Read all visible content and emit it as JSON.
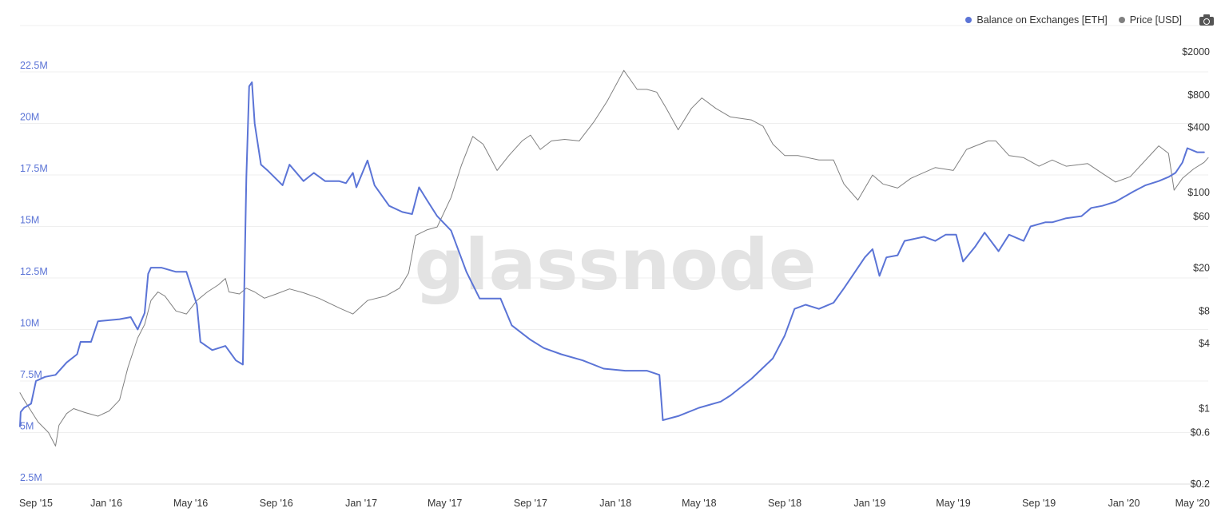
{
  "watermark": "glassnode",
  "legend": [
    {
      "label": "Balance on Exchanges [ETH]",
      "color": "#5b74d6"
    },
    {
      "label": "Price [USD]",
      "color": "#808080"
    }
  ],
  "chart_data": {
    "type": "line",
    "left_axis": {
      "ticks": [
        2.5,
        5,
        7.5,
        10,
        12.5,
        15,
        17.5,
        20,
        22.5
      ],
      "labels": [
        "2.5M",
        "5M",
        "7.5M",
        "10M",
        "12.5M",
        "15M",
        "17.5M",
        "20M",
        "22.5M"
      ],
      "range": [
        2.5,
        22.5
      ]
    },
    "right_axis": {
      "scale": "log",
      "ticks": [
        0.2,
        0.6,
        1,
        4,
        8,
        20,
        60,
        100,
        400,
        800,
        2000
      ],
      "labels": [
        "$0.2",
        "$0.6",
        "$1",
        "$4",
        "$8",
        "$20",
        "$60",
        "$100",
        "$400",
        "$800",
        "$2000"
      ],
      "range": [
        0.2,
        2000
      ]
    },
    "x_axis": {
      "labels": [
        "Sep '15",
        "Jan '16",
        "May '16",
        "Sep '16",
        "Jan '17",
        "May '17",
        "Sep '17",
        "Jan '18",
        "May '18",
        "Sep '18",
        "Jan '19",
        "May '19",
        "Sep '19",
        "Jan '20",
        "May '20"
      ],
      "range": [
        "2015-08-30",
        "2020-05-01"
      ]
    },
    "grid": true,
    "series": [
      {
        "name": "Balance on Exchanges [ETH]",
        "axis": "left",
        "color": "#5b74d6",
        "points": [
          [
            "2015-08-30",
            5.3
          ],
          [
            "2015-08-31",
            6.0
          ],
          [
            "2015-09-05",
            6.2
          ],
          [
            "2015-09-15",
            6.4
          ],
          [
            "2015-09-22",
            7.5
          ],
          [
            "2015-10-05",
            7.7
          ],
          [
            "2015-10-20",
            7.8
          ],
          [
            "2015-11-05",
            8.4
          ],
          [
            "2015-11-20",
            8.8
          ],
          [
            "2015-11-25",
            9.4
          ],
          [
            "2015-12-10",
            9.4
          ],
          [
            "2015-12-20",
            10.4
          ],
          [
            "2016-01-20",
            10.5
          ],
          [
            "2016-02-05",
            10.6
          ],
          [
            "2016-02-15",
            10.0
          ],
          [
            "2016-02-25",
            10.8
          ],
          [
            "2016-03-01",
            12.7
          ],
          [
            "2016-03-05",
            13.0
          ],
          [
            "2016-03-20",
            13.0
          ],
          [
            "2016-04-10",
            12.8
          ],
          [
            "2016-04-25",
            12.8
          ],
          [
            "2016-05-10",
            11.2
          ],
          [
            "2016-05-15",
            9.4
          ],
          [
            "2016-06-01",
            9.0
          ],
          [
            "2016-06-20",
            9.2
          ],
          [
            "2016-07-05",
            8.5
          ],
          [
            "2016-07-15",
            8.3
          ],
          [
            "2016-07-20",
            17.4
          ],
          [
            "2016-07-24",
            21.8
          ],
          [
            "2016-07-28",
            22.0
          ],
          [
            "2016-08-01",
            20.0
          ],
          [
            "2016-08-10",
            18.0
          ],
          [
            "2016-08-20",
            17.7
          ],
          [
            "2016-09-10",
            17.0
          ],
          [
            "2016-09-20",
            18.0
          ],
          [
            "2016-10-10",
            17.2
          ],
          [
            "2016-10-25",
            17.6
          ],
          [
            "2016-11-10",
            17.2
          ],
          [
            "2016-11-30",
            17.2
          ],
          [
            "2016-12-10",
            17.1
          ],
          [
            "2016-12-20",
            17.6
          ],
          [
            "2016-12-25",
            16.9
          ],
          [
            "2017-01-10",
            18.2
          ],
          [
            "2017-01-20",
            17.0
          ],
          [
            "2017-02-10",
            16.0
          ],
          [
            "2017-03-01",
            15.7
          ],
          [
            "2017-03-15",
            15.6
          ],
          [
            "2017-03-25",
            16.9
          ],
          [
            "2017-04-05",
            16.3
          ],
          [
            "2017-04-20",
            15.5
          ],
          [
            "2017-05-10",
            14.8
          ],
          [
            "2017-06-01",
            12.8
          ],
          [
            "2017-06-20",
            11.5
          ],
          [
            "2017-07-10",
            11.5
          ],
          [
            "2017-07-20",
            11.5
          ],
          [
            "2017-08-05",
            10.2
          ],
          [
            "2017-09-01",
            9.5
          ],
          [
            "2017-09-20",
            9.1
          ],
          [
            "2017-10-15",
            8.8
          ],
          [
            "2017-11-15",
            8.5
          ],
          [
            "2017-12-15",
            8.1
          ],
          [
            "2018-01-15",
            8.0
          ],
          [
            "2018-02-15",
            8.0
          ],
          [
            "2018-03-05",
            7.8
          ],
          [
            "2018-03-10",
            5.6
          ],
          [
            "2018-04-01",
            5.8
          ],
          [
            "2018-05-01",
            6.2
          ],
          [
            "2018-06-01",
            6.5
          ],
          [
            "2018-06-15",
            6.8
          ],
          [
            "2018-07-15",
            7.6
          ],
          [
            "2018-08-15",
            8.6
          ],
          [
            "2018-09-01",
            9.7
          ],
          [
            "2018-09-15",
            11.0
          ],
          [
            "2018-10-01",
            11.2
          ],
          [
            "2018-10-20",
            11.0
          ],
          [
            "2018-11-10",
            11.3
          ],
          [
            "2018-11-25",
            12.0
          ],
          [
            "2018-12-15",
            13.0
          ],
          [
            "2018-12-25",
            13.5
          ],
          [
            "2019-01-05",
            13.9
          ],
          [
            "2019-01-15",
            12.6
          ],
          [
            "2019-01-25",
            13.5
          ],
          [
            "2019-02-10",
            13.6
          ],
          [
            "2019-02-20",
            14.3
          ],
          [
            "2019-03-20",
            14.5
          ],
          [
            "2019-04-05",
            14.3
          ],
          [
            "2019-04-20",
            14.6
          ],
          [
            "2019-05-05",
            14.6
          ],
          [
            "2019-05-15",
            13.3
          ],
          [
            "2019-06-01",
            14.0
          ],
          [
            "2019-06-15",
            14.7
          ],
          [
            "2019-07-05",
            13.8
          ],
          [
            "2019-07-20",
            14.6
          ],
          [
            "2019-08-10",
            14.3
          ],
          [
            "2019-08-20",
            15.0
          ],
          [
            "2019-09-10",
            15.2
          ],
          [
            "2019-09-20",
            15.2
          ],
          [
            "2019-10-10",
            15.4
          ],
          [
            "2019-11-01",
            15.5
          ],
          [
            "2019-11-15",
            15.9
          ],
          [
            "2019-12-01",
            16.0
          ],
          [
            "2019-12-20",
            16.2
          ],
          [
            "2020-01-15",
            16.7
          ],
          [
            "2020-02-01",
            17.0
          ],
          [
            "2020-02-20",
            17.2
          ],
          [
            "2020-03-05",
            17.4
          ],
          [
            "2020-03-15",
            17.6
          ],
          [
            "2020-03-25",
            18.1
          ],
          [
            "2020-04-01",
            18.8
          ],
          [
            "2020-04-15",
            18.6
          ],
          [
            "2020-04-25",
            18.6
          ]
        ]
      },
      {
        "name": "Price [USD]",
        "axis": "right",
        "color": "#808080",
        "points": [
          [
            "2015-08-30",
            1.4
          ],
          [
            "2015-09-05",
            1.2
          ],
          [
            "2015-09-15",
            0.95
          ],
          [
            "2015-09-25",
            0.75
          ],
          [
            "2015-10-10",
            0.6
          ],
          [
            "2015-10-20",
            0.45
          ],
          [
            "2015-10-25",
            0.7
          ],
          [
            "2015-11-05",
            0.9
          ],
          [
            "2015-11-15",
            1.0
          ],
          [
            "2015-12-01",
            0.92
          ],
          [
            "2015-12-20",
            0.85
          ],
          [
            "2016-01-05",
            0.95
          ],
          [
            "2016-01-20",
            1.2
          ],
          [
            "2016-02-01",
            2.4
          ],
          [
            "2016-02-15",
            4.5
          ],
          [
            "2016-02-25",
            6.0
          ],
          [
            "2016-03-05",
            10.0
          ],
          [
            "2016-03-15",
            12.0
          ],
          [
            "2016-03-25",
            11.0
          ],
          [
            "2016-04-10",
            8.0
          ],
          [
            "2016-04-25",
            7.5
          ],
          [
            "2016-05-10",
            10.0
          ],
          [
            "2016-05-25",
            12.0
          ],
          [
            "2016-06-10",
            14.0
          ],
          [
            "2016-06-20",
            16.0
          ],
          [
            "2016-06-25",
            12.0
          ],
          [
            "2016-07-10",
            11.5
          ],
          [
            "2016-07-20",
            13.0
          ],
          [
            "2016-08-01",
            12.0
          ],
          [
            "2016-08-15",
            10.5
          ],
          [
            "2016-09-01",
            11.5
          ],
          [
            "2016-09-20",
            12.8
          ],
          [
            "2016-10-10",
            11.8
          ],
          [
            "2016-11-01",
            10.5
          ],
          [
            "2016-12-01",
            8.5
          ],
          [
            "2016-12-20",
            7.5
          ],
          [
            "2017-01-10",
            10.0
          ],
          [
            "2017-02-05",
            11.0
          ],
          [
            "2017-02-25",
            13.0
          ],
          [
            "2017-03-10",
            18.0
          ],
          [
            "2017-03-20",
            40.0
          ],
          [
            "2017-04-05",
            45.0
          ],
          [
            "2017-04-20",
            48.0
          ],
          [
            "2017-05-10",
            90.0
          ],
          [
            "2017-05-25",
            180.0
          ],
          [
            "2017-06-10",
            330.0
          ],
          [
            "2017-06-25",
            280.0
          ],
          [
            "2017-07-15",
            160.0
          ],
          [
            "2017-08-01",
            220.0
          ],
          [
            "2017-08-20",
            300.0
          ],
          [
            "2017-09-01",
            340.0
          ],
          [
            "2017-09-15",
            250.0
          ],
          [
            "2017-10-01",
            300.0
          ],
          [
            "2017-10-20",
            310.0
          ],
          [
            "2017-11-10",
            300.0
          ],
          [
            "2017-12-01",
            450.0
          ],
          [
            "2017-12-20",
            700.0
          ],
          [
            "2018-01-13",
            1350.0
          ],
          [
            "2018-02-01",
            900.0
          ],
          [
            "2018-02-15",
            900.0
          ],
          [
            "2018-03-01",
            850.0
          ],
          [
            "2018-03-15",
            600.0
          ],
          [
            "2018-04-01",
            380.0
          ],
          [
            "2018-04-20",
            600.0
          ],
          [
            "2018-05-05",
            750.0
          ],
          [
            "2018-05-25",
            600.0
          ],
          [
            "2018-06-15",
            500.0
          ],
          [
            "2018-07-15",
            470.0
          ],
          [
            "2018-08-01",
            410.0
          ],
          [
            "2018-08-15",
            280.0
          ],
          [
            "2018-09-01",
            220.0
          ],
          [
            "2018-09-20",
            220.0
          ],
          [
            "2018-10-20",
            200.0
          ],
          [
            "2018-11-10",
            200.0
          ],
          [
            "2018-11-25",
            120.0
          ],
          [
            "2018-12-15",
            85.0
          ],
          [
            "2019-01-05",
            145.0
          ],
          [
            "2019-01-20",
            120.0
          ],
          [
            "2019-02-10",
            110.0
          ],
          [
            "2019-03-01",
            135.0
          ],
          [
            "2019-04-05",
            170.0
          ],
          [
            "2019-05-01",
            160.0
          ],
          [
            "2019-05-20",
            250.0
          ],
          [
            "2019-06-20",
            300.0
          ],
          [
            "2019-07-01",
            300.0
          ],
          [
            "2019-07-20",
            220.0
          ],
          [
            "2019-08-10",
            210.0
          ],
          [
            "2019-09-01",
            175.0
          ],
          [
            "2019-09-20",
            200.0
          ],
          [
            "2019-10-10",
            175.0
          ],
          [
            "2019-11-10",
            185.0
          ],
          [
            "2019-12-01",
            150.0
          ],
          [
            "2019-12-20",
            125.0
          ],
          [
            "2020-01-10",
            140.0
          ],
          [
            "2020-02-10",
            230.0
          ],
          [
            "2020-02-20",
            270.0
          ],
          [
            "2020-03-05",
            230.0
          ],
          [
            "2020-03-13",
            105.0
          ],
          [
            "2020-03-25",
            135.0
          ],
          [
            "2020-04-10",
            165.0
          ],
          [
            "2020-04-25",
            190.0
          ],
          [
            "2020-05-01",
            210.0
          ]
        ]
      }
    ]
  }
}
